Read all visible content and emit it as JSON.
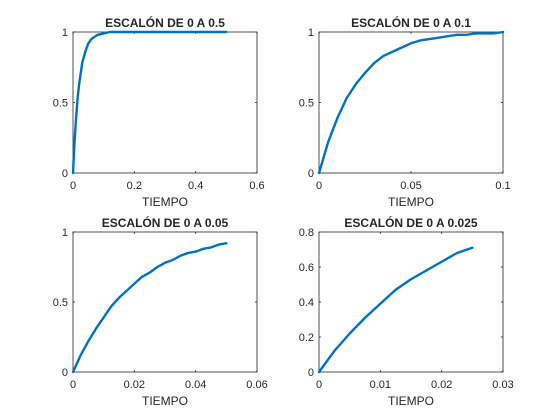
{
  "chart_data": [
    {
      "type": "line",
      "title": "ESCALÓN DE 0 A 0.5",
      "xlabel": "TIEMPO",
      "ylabel": "",
      "xlim": [
        0,
        0.6
      ],
      "ylim": [
        0,
        1
      ],
      "xticks": [
        "0",
        "0.2",
        "0.4",
        "0.6"
      ],
      "yticks": [
        "0",
        "0.5",
        "1"
      ],
      "grid": false,
      "series": [
        {
          "color": "#0072BD",
          "x": [
            0,
            0.005,
            0.01,
            0.015,
            0.02,
            0.03,
            0.04,
            0.05,
            0.06,
            0.08,
            0.1,
            0.12,
            0.15,
            0.2,
            0.3,
            0.4,
            0.5
          ],
          "y": [
            0,
            0.22,
            0.39,
            0.53,
            0.63,
            0.78,
            0.86,
            0.92,
            0.95,
            0.98,
            0.99,
            1.0,
            1.0,
            1.0,
            1.0,
            1.0,
            1.0
          ]
        }
      ]
    },
    {
      "type": "line",
      "title": "ESCALÓN DE 0 A 0.1",
      "xlabel": "TIEMPO",
      "ylabel": "",
      "xlim": [
        0,
        0.1
      ],
      "ylim": [
        0,
        1
      ],
      "xticks": [
        "0",
        "0.05",
        "0.1"
      ],
      "yticks": [
        "0",
        "0.5",
        "1"
      ],
      "grid": false,
      "series": [
        {
          "color": "#0072BD",
          "x": [
            0,
            0.005,
            0.01,
            0.015,
            0.02,
            0.025,
            0.03,
            0.035,
            0.04,
            0.045,
            0.05,
            0.055,
            0.06,
            0.065,
            0.07,
            0.075,
            0.08,
            0.085,
            0.09,
            0.095,
            0.1
          ],
          "y": [
            0,
            0.22,
            0.39,
            0.53,
            0.63,
            0.71,
            0.78,
            0.83,
            0.86,
            0.89,
            0.92,
            0.94,
            0.95,
            0.96,
            0.97,
            0.98,
            0.98,
            0.99,
            0.99,
            0.99,
            1.0
          ]
        }
      ]
    },
    {
      "type": "line",
      "title": "ESCALÓN DE 0 A 0.05",
      "xlabel": "TIEMPO",
      "ylabel": "",
      "xlim": [
        0,
        0.06
      ],
      "ylim": [
        0,
        1
      ],
      "xticks": [
        "0",
        "0.02",
        "0.04",
        "0.06"
      ],
      "yticks": [
        "0",
        "0.5",
        "1"
      ],
      "grid": false,
      "series": [
        {
          "color": "#0072BD",
          "x": [
            0,
            0.0025,
            0.005,
            0.0075,
            0.01,
            0.0125,
            0.015,
            0.0175,
            0.02,
            0.0225,
            0.025,
            0.0275,
            0.03,
            0.0325,
            0.035,
            0.0375,
            0.04,
            0.0425,
            0.045,
            0.0475,
            0.05
          ],
          "y": [
            0,
            0.12,
            0.22,
            0.31,
            0.39,
            0.47,
            0.53,
            0.58,
            0.63,
            0.68,
            0.71,
            0.75,
            0.78,
            0.8,
            0.83,
            0.85,
            0.86,
            0.88,
            0.89,
            0.91,
            0.92
          ]
        }
      ]
    },
    {
      "type": "line",
      "title": "ESCALÓN DE 0 A 0.025",
      "xlabel": "TIEMPO",
      "ylabel": "",
      "xlim": [
        0,
        0.03
      ],
      "ylim": [
        0,
        0.8
      ],
      "xticks": [
        "0",
        "0.01",
        "0.02",
        "0.03"
      ],
      "yticks": [
        "0",
        "0.2",
        "0.4",
        "0.6",
        "0.8"
      ],
      "grid": false,
      "series": [
        {
          "color": "#0072BD",
          "x": [
            0,
            0.0025,
            0.005,
            0.0075,
            0.01,
            0.0125,
            0.015,
            0.0175,
            0.02,
            0.0225,
            0.025
          ],
          "y": [
            0,
            0.12,
            0.22,
            0.31,
            0.39,
            0.47,
            0.53,
            0.58,
            0.63,
            0.68,
            0.71
          ]
        }
      ]
    }
  ]
}
